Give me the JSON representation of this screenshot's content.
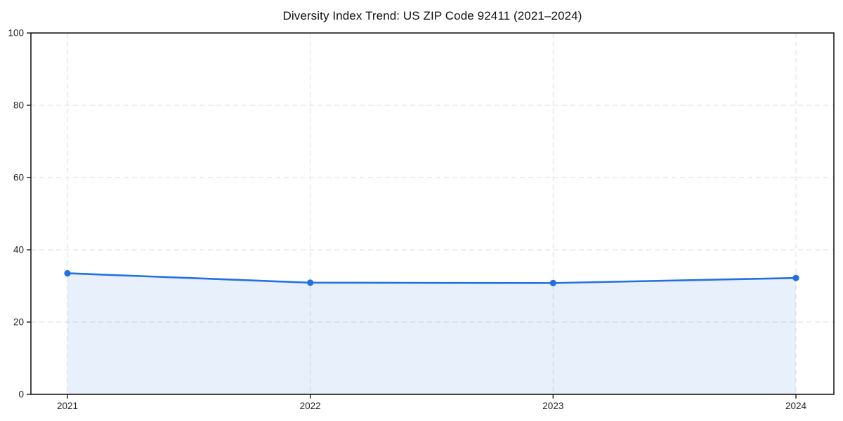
{
  "chart_data": {
    "type": "area",
    "title": "Diversity Index Trend: US ZIP Code 92411 (2021–2024)",
    "x": [
      "2021",
      "2022",
      "2023",
      "2024"
    ],
    "series": [
      {
        "name": "Diversity Index",
        "values": [
          33.5,
          30.9,
          30.8,
          32.2
        ]
      }
    ],
    "xlabel": "",
    "ylabel": "",
    "ylim": [
      0,
      100
    ],
    "yticks": [
      0,
      20,
      40,
      60,
      80,
      100
    ],
    "grid": true,
    "grid_style": "dashed",
    "legend_position": "none",
    "colors": {
      "line": "#2270e4",
      "marker": "#2270e4",
      "fill": "rgba(34, 112, 228, 0.10)",
      "grid": "#dedede",
      "axis": "#1a1a1a",
      "background": "#ffffff",
      "title_text": "#111111",
      "tick_text": "#222222"
    }
  }
}
